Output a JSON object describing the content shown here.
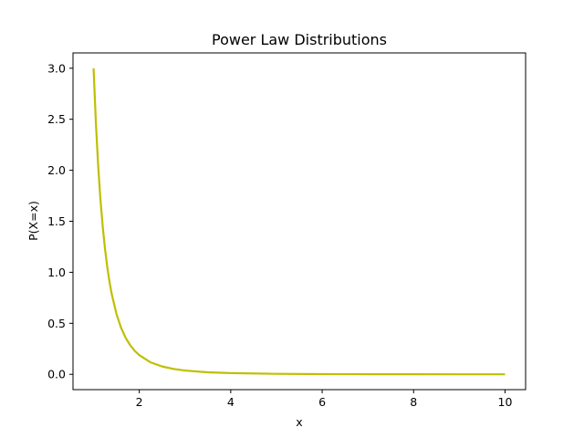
{
  "chart_data": {
    "type": "line",
    "title": "Power Law Distributions",
    "xlabel": "x",
    "ylabel": "P(X=x)",
    "xlim": [
      0.55,
      10.45
    ],
    "ylim": [
      -0.15,
      3.15
    ],
    "xticks": [
      2,
      4,
      6,
      8,
      10
    ],
    "yticks": [
      0.0,
      0.5,
      1.0,
      1.5,
      2.0,
      2.5,
      3.0
    ],
    "xtick_labels": [
      "2",
      "4",
      "6",
      "8",
      "10"
    ],
    "ytick_labels": [
      "0.0",
      "0.5",
      "1.0",
      "1.5",
      "2.0",
      "2.5",
      "3.0"
    ],
    "grid": false,
    "series": [
      {
        "color": "#bfbf00",
        "x": [
          1.0,
          1.05,
          1.1,
          1.15,
          1.2,
          1.25,
          1.3,
          1.35,
          1.4,
          1.5,
          1.6,
          1.7,
          1.8,
          1.9,
          2.0,
          2.25,
          2.5,
          2.75,
          3.0,
          3.5,
          4.0,
          5.0,
          6.0,
          7.0,
          8.0,
          9.0,
          10.0
        ],
        "y": [
          3.0,
          2.468,
          2.049,
          1.715,
          1.447,
          1.229,
          1.05,
          0.903,
          0.781,
          0.593,
          0.458,
          0.359,
          0.286,
          0.23,
          0.188,
          0.117,
          0.077,
          0.053,
          0.037,
          0.02,
          0.012,
          0.005,
          0.002,
          0.001,
          0.0007,
          0.0005,
          0.0003
        ]
      }
    ]
  }
}
